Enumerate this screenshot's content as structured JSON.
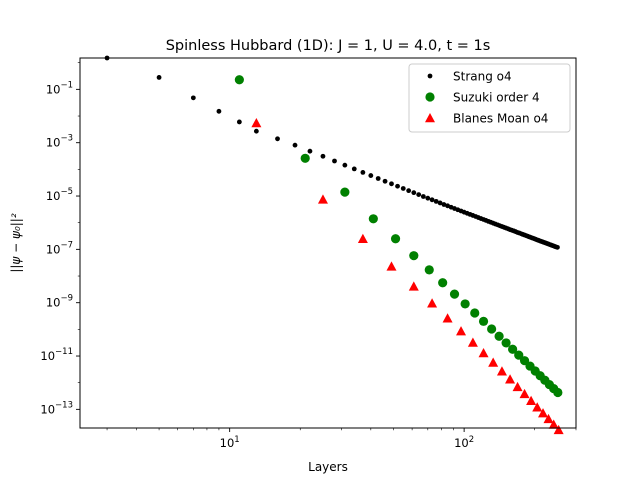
{
  "chart_data": {
    "type": "scatter",
    "title": "Spinless Hubbard (1D):  J = 1, U = 4.0, t = 1s",
    "xlabel": "Layers",
    "ylabel": "||ψ − ψ₀||²",
    "x_scale": "log",
    "y_scale": "log",
    "xlim": [
      2.3,
      300
    ],
    "ylim": [
      2e-14,
      1.5
    ],
    "x_ticks": [
      {
        "value": 10,
        "base": "10",
        "exp": "1"
      },
      {
        "value": 100,
        "base": "10",
        "exp": "2"
      }
    ],
    "y_ticks": [
      {
        "value": 1e-13,
        "base": "10",
        "exp": "−13"
      },
      {
        "value": 1e-11,
        "base": "10",
        "exp": "−11"
      },
      {
        "value": 1e-09,
        "base": "10",
        "exp": "−9"
      },
      {
        "value": 1e-07,
        "base": "10",
        "exp": "−7"
      },
      {
        "value": 1e-05,
        "base": "10",
        "exp": "−5"
      },
      {
        "value": 0.001,
        "base": "10",
        "exp": "−3"
      },
      {
        "value": 0.1,
        "base": "10",
        "exp": "−1"
      }
    ],
    "grid": false,
    "legend_position": "top-right",
    "series": [
      {
        "name": "Strang o4",
        "color": "#000000",
        "marker": "small-dot",
        "x": [
          3,
          5,
          7,
          9,
          11,
          13,
          16,
          19,
          22,
          25,
          28,
          31,
          34,
          37,
          40,
          43,
          46,
          49,
          52,
          55,
          58,
          61,
          64,
          67,
          70,
          73,
          76,
          79,
          82,
          85,
          88,
          91,
          94,
          97,
          100,
          103,
          106,
          109,
          112,
          115,
          118,
          121,
          124,
          127,
          130,
          133,
          136,
          139,
          142,
          145,
          148,
          151,
          154,
          157,
          160,
          163,
          166,
          169,
          172,
          175,
          178,
          181,
          184,
          187,
          190,
          193,
          196,
          199,
          202,
          205,
          208,
          211,
          214,
          217,
          220,
          223,
          226,
          229,
          232,
          235,
          238,
          241,
          244,
          247,
          250
        ],
        "y": [
          1.5,
          0.28,
          0.048,
          0.015,
          0.006,
          0.0027,
          0.0014,
          0.00081,
          0.00048,
          0.00031,
          0.000206,
          0.000144,
          0.000104,
          7.7e-05,
          5.85e-05,
          4.54e-05,
          3.58e-05,
          2.87e-05,
          2.33e-05,
          1.92e-05,
          1.59e-05,
          1.34e-05,
          1.13e-05,
          9.6e-06,
          8.3e-06,
          7.2e-06,
          6.3e-06,
          5.5e-06,
          4.8e-06,
          4.3e-06,
          3.8e-06,
          3.4e-06,
          3.05e-06,
          2.75e-06,
          2.48e-06,
          2.25e-06,
          2.05e-06,
          1.87e-06,
          1.71e-06,
          1.56e-06,
          1.43e-06,
          1.32e-06,
          1.22e-06,
          1.12e-06,
          1.04e-06,
          9.6e-07,
          8.9e-07,
          8.3e-07,
          7.7e-07,
          7.2e-07,
          6.7e-07,
          6.3e-07,
          5.9e-07,
          5.5e-07,
          5.2e-07,
          4.9e-07,
          4.6e-07,
          4.3e-07,
          4.1e-07,
          3.86e-07,
          3.65e-07,
          3.45e-07,
          3.27e-07,
          3.09e-07,
          2.93e-07,
          2.78e-07,
          2.64e-07,
          2.51e-07,
          2.39e-07,
          2.27e-07,
          2.17e-07,
          2.06e-07,
          1.97e-07,
          1.88e-07,
          1.8e-07,
          1.72e-07,
          1.65e-07,
          1.58e-07,
          1.51e-07,
          1.45e-07,
          1.39e-07,
          1.34e-07,
          1.28e-07,
          1.23e-07,
          1.19e-07
        ]
      },
      {
        "name": "Suzuki order 4",
        "color": "#008000",
        "marker": "circle",
        "x": [
          11,
          21,
          31,
          41,
          51,
          61,
          71,
          81,
          91,
          101,
          111,
          121,
          131,
          141,
          151,
          161,
          171,
          181,
          191,
          201,
          211,
          221,
          231,
          241,
          251
        ],
        "y": [
          0.23,
          0.00026,
          1.4e-05,
          1.4e-06,
          2.5e-07,
          5.8e-08,
          1.7e-08,
          5.6e-09,
          2.1e-09,
          9e-10,
          4.1e-10,
          2e-10,
          1.03e-10,
          5.5e-11,
          3.1e-11,
          1.8e-11,
          1.08e-11,
          6.7e-12,
          4.2e-12,
          2.75e-12,
          1.82e-12,
          1.24e-12,
          8.5e-13,
          6e-13,
          4.3e-13
        ]
      },
      {
        "name": "Blanes Moan o4",
        "color": "#ff0000",
        "marker": "triangle",
        "x": [
          13,
          25,
          37,
          49,
          61,
          73,
          85,
          97,
          109,
          121,
          133,
          145,
          157,
          169,
          181,
          193,
          205,
          217,
          229,
          241,
          253
        ],
        "y": [
          0.0055,
          7.5e-06,
          2.5e-07,
          2.3e-08,
          4.1e-09,
          9.5e-10,
          2.6e-10,
          8.6e-11,
          3.2e-11,
          1.3e-11,
          5.7e-12,
          2.7e-12,
          1.35e-12,
          7e-13,
          3.8e-13,
          2.1e-13,
          1.2e-13,
          7.2e-14,
          4.4e-14,
          2.7e-14,
          1.7e-14
        ]
      }
    ]
  }
}
